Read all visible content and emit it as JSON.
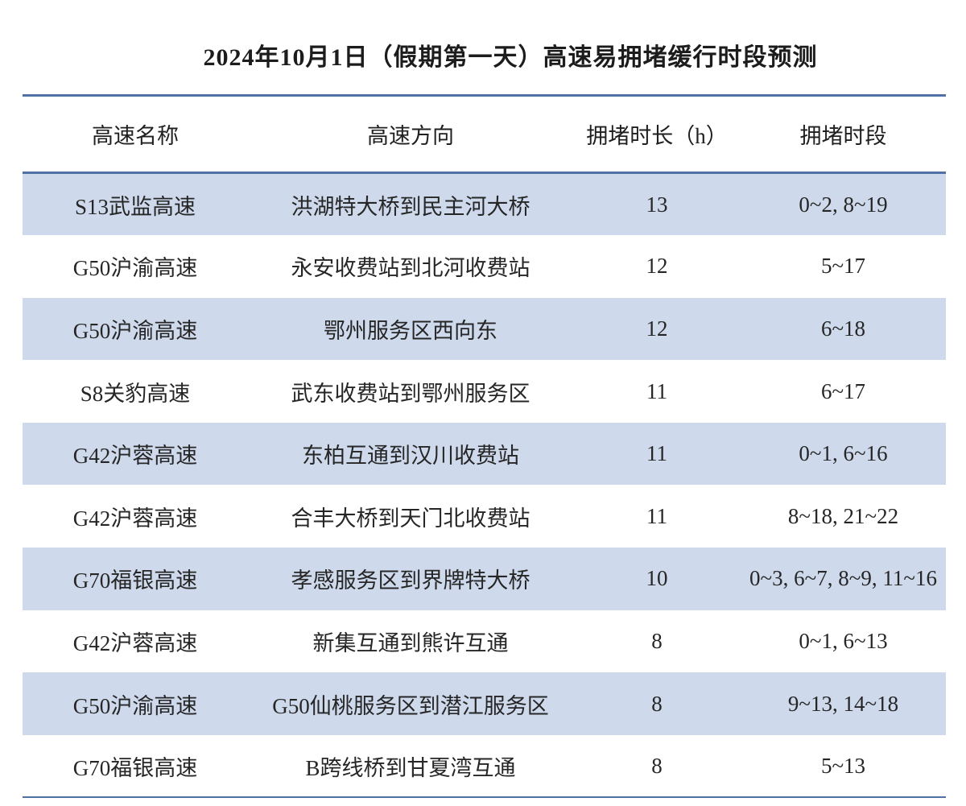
{
  "page": {
    "title": "2024年10月1日（假期第一天）高速易拥堵缓行时段预测"
  },
  "table": {
    "columns": [
      "高速名称",
      "高速方向",
      "拥堵时长（h）",
      "拥堵时段"
    ],
    "rows": [
      {
        "name": "S13武监高速",
        "direction": "洪湖特大桥到民主河大桥",
        "duration": "13",
        "period": "0~2, 8~19"
      },
      {
        "name": "G50沪渝高速",
        "direction": "永安收费站到北河收费站",
        "duration": "12",
        "period": "5~17"
      },
      {
        "name": "G50沪渝高速",
        "direction": "鄂州服务区西向东",
        "duration": "12",
        "period": "6~18"
      },
      {
        "name": "S8关豹高速",
        "direction": "武东收费站到鄂州服务区",
        "duration": "11",
        "period": "6~17"
      },
      {
        "name": "G42沪蓉高速",
        "direction": "东柏互通到汉川收费站",
        "duration": "11",
        "period": "0~1, 6~16"
      },
      {
        "name": "G42沪蓉高速",
        "direction": "合丰大桥到天门北收费站",
        "duration": "11",
        "period": "8~18, 21~22"
      },
      {
        "name": "G70福银高速",
        "direction": "孝感服务区到界牌特大桥",
        "duration": "10",
        "period": "0~3, 6~7, 8~9, 11~16"
      },
      {
        "name": "G42沪蓉高速",
        "direction": "新集互通到熊许互通",
        "duration": "8",
        "period": "0~1, 6~13"
      },
      {
        "name": "G50沪渝高速",
        "direction": "G50仙桃服务区到潜江服务区",
        "duration": "8",
        "period": "9~13, 14~18"
      },
      {
        "name": "G70福银高速",
        "direction": "B跨线桥到甘夏湾互通",
        "duration": "8",
        "period": "5~13"
      }
    ]
  },
  "colors": {
    "band": "#cfd9ec",
    "line": "#4f71a6",
    "text": "#232323"
  },
  "chart_data": {
    "type": "table",
    "title": "2024年10月1日（假期第一天）高速易拥堵缓行时段预测",
    "columns": [
      "高速名称",
      "高速方向",
      "拥堵时长（h）",
      "拥堵时段"
    ],
    "rows": [
      [
        "S13武监高速",
        "洪湖特大桥到民主河大桥",
        13,
        "0~2, 8~19"
      ],
      [
        "G50沪渝高速",
        "永安收费站到北河收费站",
        12,
        "5~17"
      ],
      [
        "G50沪渝高速",
        "鄂州服务区西向东",
        12,
        "6~18"
      ],
      [
        "S8关豹高速",
        "武东收费站到鄂州服务区",
        11,
        "6~17"
      ],
      [
        "G42沪蓉高速",
        "东柏互通到汉川收费站",
        11,
        "0~1, 6~16"
      ],
      [
        "G42沪蓉高速",
        "合丰大桥到天门北收费站",
        11,
        "8~18, 21~22"
      ],
      [
        "G70福银高速",
        "孝感服务区到界牌特大桥",
        10,
        "0~3, 6~7, 8~9, 11~16"
      ],
      [
        "G42沪蓉高速",
        "新集互通到熊许互通",
        8,
        "0~1, 6~13"
      ],
      [
        "G50沪渝高速",
        "G50仙桃服务区到潜江服务区",
        8,
        "9~13, 14~18"
      ],
      [
        "G70福银高速",
        "B跨线桥到甘夏湾互通",
        8,
        "5~13"
      ]
    ],
    "layout": {
      "banded_rows": "odd rows shaded",
      "grid": "horizontal rules only",
      "column_align": "center"
    }
  }
}
